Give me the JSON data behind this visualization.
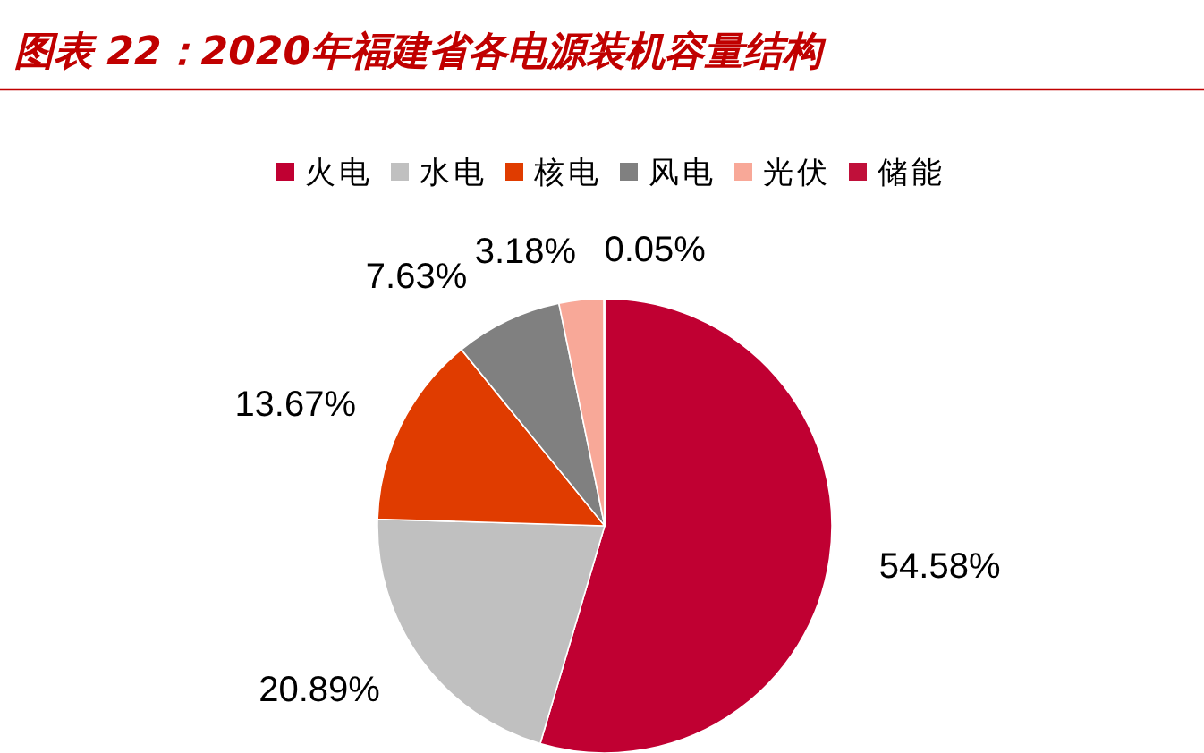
{
  "chart_data": {
    "type": "pie",
    "title": "图表 22：2020年福建省各电源装机容量结构",
    "categories": [
      "火电",
      "水电",
      "核电",
      "风电",
      "光伏",
      "储能"
    ],
    "values": [
      54.58,
      20.89,
      13.67,
      7.63,
      3.18,
      0.05
    ],
    "colors": [
      "#c00032",
      "#c0c0c0",
      "#e03c00",
      "#808080",
      "#f8a898",
      "#c0103a"
    ],
    "value_labels": [
      "54.58%",
      "20.89%",
      "13.67%",
      "7.63%",
      "3.18%",
      "0.05%"
    ],
    "legend": "top"
  }
}
